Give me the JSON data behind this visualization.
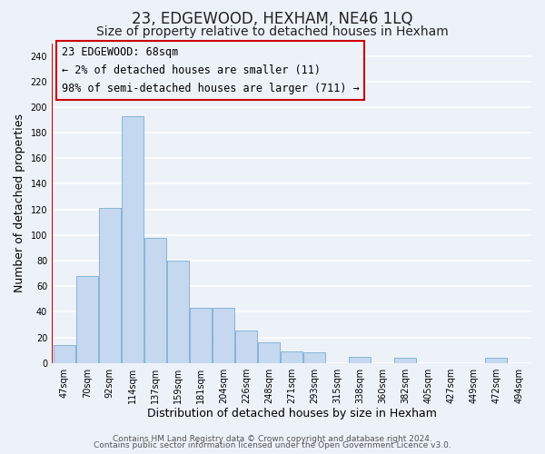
{
  "title": "23, EDGEWOOD, HEXHAM, NE46 1LQ",
  "subtitle": "Size of property relative to detached houses in Hexham",
  "xlabel": "Distribution of detached houses by size in Hexham",
  "ylabel": "Number of detached properties",
  "bar_labels": [
    "47sqm",
    "70sqm",
    "92sqm",
    "114sqm",
    "137sqm",
    "159sqm",
    "181sqm",
    "204sqm",
    "226sqm",
    "248sqm",
    "271sqm",
    "293sqm",
    "315sqm",
    "338sqm",
    "360sqm",
    "382sqm",
    "405sqm",
    "427sqm",
    "449sqm",
    "472sqm",
    "494sqm"
  ],
  "bar_values": [
    14,
    68,
    121,
    193,
    98,
    80,
    43,
    43,
    25,
    16,
    9,
    8,
    0,
    5,
    0,
    4,
    0,
    0,
    0,
    4,
    0
  ],
  "bar_color": "#c5d8ef",
  "bar_edge_color": "#7aadd4",
  "annotation_title": "23 EDGEWOOD: 68sqm",
  "annotation_line1": "← 2% of detached houses are smaller (11)",
  "annotation_line2": "98% of semi-detached houses are larger (711) →",
  "annotation_box_edge_color": "#cc0000",
  "red_line_color": "#cc0000",
  "ylim": [
    0,
    250
  ],
  "yticks": [
    0,
    20,
    40,
    60,
    80,
    100,
    120,
    140,
    160,
    180,
    200,
    220,
    240
  ],
  "footer_line1": "Contains HM Land Registry data © Crown copyright and database right 2024.",
  "footer_line2": "Contains public sector information licensed under the Open Government Licence v3.0.",
  "bg_color": "#edf2f9",
  "grid_color": "#ffffff",
  "title_fontsize": 12,
  "subtitle_fontsize": 10,
  "axis_label_fontsize": 9,
  "tick_fontsize": 7,
  "footer_fontsize": 6.5,
  "annotation_fontsize": 8.5
}
